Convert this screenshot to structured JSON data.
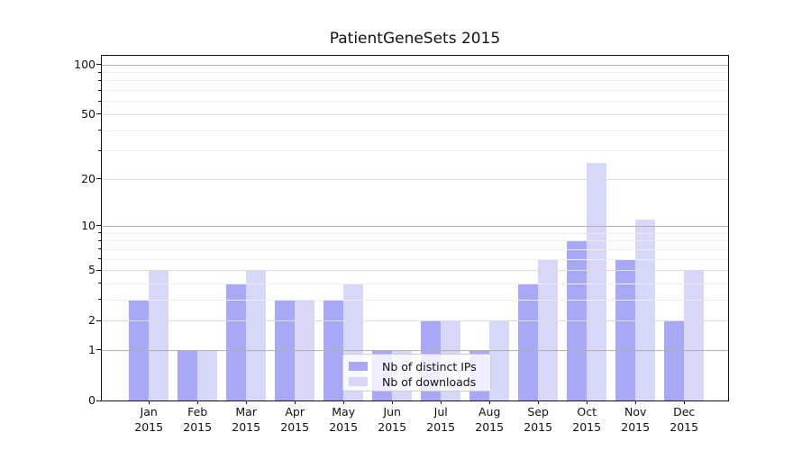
{
  "chart_data": {
    "type": "bar",
    "title": "PatientGeneSets 2015",
    "categories": [
      "Jan 2015",
      "Feb 2015",
      "Mar 2015",
      "Apr 2015",
      "May 2015",
      "Jun 2015",
      "Jul 2015",
      "Aug 2015",
      "Sep 2015",
      "Oct 2015",
      "Nov 2015",
      "Dec 2015"
    ],
    "month_labels": [
      "Jan",
      "Feb",
      "Mar",
      "Apr",
      "May",
      "Jun",
      "Jul",
      "Aug",
      "Sep",
      "Oct",
      "Nov",
      "Dec"
    ],
    "year_label": "2015",
    "series": [
      {
        "name": "Nb of distinct IPs",
        "color": "#a8a8f7",
        "values": [
          3,
          1,
          4,
          3,
          3,
          1,
          2,
          1,
          4,
          8,
          6,
          2
        ]
      },
      {
        "name": "Nb of downloads",
        "color": "#d7d7fa",
        "values": [
          5,
          1,
          5,
          3,
          4,
          1,
          2,
          2,
          6,
          25,
          11,
          5
        ]
      }
    ],
    "y_axis": {
      "scale": "log1p",
      "ticks": [
        0,
        1,
        2,
        5,
        10,
        20,
        50,
        100
      ],
      "minor_ticks": [
        3,
        4,
        6,
        7,
        8,
        9,
        30,
        40,
        60,
        70,
        80,
        90
      ],
      "decade_ticks": [
        1,
        10,
        100
      ],
      "range_max": 112.6
    },
    "x_axis": {
      "label": ""
    },
    "legend": {
      "position": "lower-center",
      "entries": [
        "Nb of distinct IPs",
        "Nb of downloads"
      ]
    },
    "grid": "on",
    "colors": {
      "bar_distinct_ips": "#a8a8f7",
      "bar_downloads": "#d7d7fa",
      "grid_decade": "#b0b0b0",
      "grid_major": "#dcdcdc",
      "grid_minor": "#ededed",
      "axis": "#111111",
      "background": "#ffffff"
    }
  }
}
